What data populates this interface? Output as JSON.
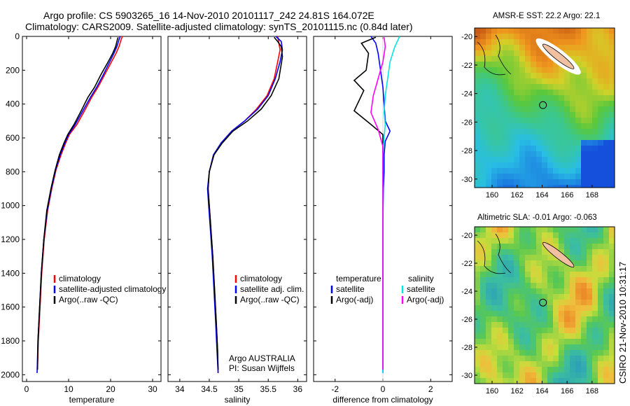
{
  "header": {
    "line1": "Argo profile: CS 5903265_16 14-Nov-2010 20101117_242 24.81S 164.072E",
    "line2": "Climatology: CARS2009. Satellite-adjusted climatology: synTS_20101115.nc (0.84d later)"
  },
  "side_label": "CSIRO 21-Nov-2010 10:31:17",
  "colors": {
    "climatology": "#ff0000",
    "satellite": "#0000ff",
    "argo": "#000000",
    "salinity_satellite": "#00e5e5",
    "salinity_argo": "#ff00ff"
  },
  "chart_data": [
    {
      "type": "line",
      "name": "temperature-profile",
      "xlabel": "temperature",
      "xlim": [
        -1,
        32
      ],
      "ylim": [
        2040,
        0
      ],
      "xticks": [
        0,
        10,
        20,
        30
      ],
      "yticks": [
        0,
        200,
        400,
        600,
        800,
        1000,
        1200,
        1400,
        1600,
        1800,
        2000
      ],
      "legend": [
        "climatology",
        "satellite-adjusted climatology",
        "Argo(..raw -QC)"
      ],
      "series": [
        {
          "name": "climatology",
          "color": "#ff0000",
          "points": [
            [
              22.8,
              0
            ],
            [
              22.5,
              20
            ],
            [
              22.0,
              60
            ],
            [
              21.3,
              100
            ],
            [
              20.0,
              160
            ],
            [
              18.5,
              230
            ],
            [
              17.0,
              300
            ],
            [
              15.5,
              360
            ],
            [
              13.8,
              440
            ],
            [
              12.0,
              520
            ],
            [
              10.2,
              580
            ],
            [
              9.3,
              630
            ],
            [
              8.2,
              700
            ],
            [
              7.0,
              790
            ],
            [
              6.0,
              900
            ],
            [
              5.0,
              1030
            ],
            [
              4.2,
              1200
            ],
            [
              3.6,
              1400
            ],
            [
              3.2,
              1600
            ],
            [
              2.8,
              1800
            ],
            [
              2.6,
              1960
            ]
          ]
        },
        {
          "name": "satellite-adjusted climatology",
          "color": "#0000ff",
          "points": [
            [
              22.3,
              0
            ],
            [
              22.0,
              20
            ],
            [
              21.5,
              60
            ],
            [
              20.8,
              100
            ],
            [
              19.6,
              160
            ],
            [
              18.2,
              230
            ],
            [
              16.7,
              300
            ],
            [
              15.2,
              360
            ],
            [
              13.4,
              440
            ],
            [
              11.6,
              520
            ],
            [
              10.0,
              580
            ],
            [
              9.1,
              630
            ],
            [
              8.0,
              700
            ],
            [
              6.9,
              790
            ],
            [
              5.9,
              900
            ],
            [
              4.9,
              1030
            ],
            [
              4.1,
              1200
            ],
            [
              3.5,
              1400
            ],
            [
              3.1,
              1600
            ],
            [
              2.7,
              1800
            ],
            [
              2.5,
              1990
            ]
          ]
        },
        {
          "name": "Argo(..raw -QC)",
          "color": "#000000",
          "points": [
            [
              21.8,
              5
            ],
            [
              21.6,
              20
            ],
            [
              21.2,
              60
            ],
            [
              20.5,
              100
            ],
            [
              19.2,
              160
            ],
            [
              17.6,
              230
            ],
            [
              16.2,
              300
            ],
            [
              14.6,
              360
            ],
            [
              13.0,
              440
            ],
            [
              11.3,
              520
            ],
            [
              9.8,
              580
            ],
            [
              8.9,
              630
            ],
            [
              7.8,
              700
            ],
            [
              6.8,
              790
            ],
            [
              5.8,
              900
            ],
            [
              4.8,
              1030
            ],
            [
              4.1,
              1200
            ],
            [
              3.5,
              1400
            ],
            [
              3.1,
              1600
            ],
            [
              2.7,
              1800
            ],
            [
              2.6,
              1970
            ]
          ]
        }
      ]
    },
    {
      "type": "line",
      "name": "salinity-profile",
      "xlabel": "salinity",
      "xlim": [
        33.8,
        36.15
      ],
      "ylim": [
        2040,
        0
      ],
      "xticks": [
        34,
        34.5,
        35,
        35.5,
        36
      ],
      "legend": [
        "climatology",
        "satellite adj. clim.",
        "Argo(..raw -QC)"
      ],
      "annotation": [
        "Argo AUSTRALIA",
        "PI: Susan Wijffels"
      ],
      "series": [
        {
          "name": "climatology",
          "color": "#ff0000",
          "points": [
            [
              35.66,
              0
            ],
            [
              35.68,
              40
            ],
            [
              35.7,
              80
            ],
            [
              35.66,
              150
            ],
            [
              35.6,
              250
            ],
            [
              35.48,
              350
            ],
            [
              35.3,
              430
            ],
            [
              35.1,
              500
            ],
            [
              34.88,
              560
            ],
            [
              34.7,
              630
            ],
            [
              34.58,
              700
            ],
            [
              34.5,
              800
            ],
            [
              34.48,
              900
            ],
            [
              34.5,
              1000
            ],
            [
              34.53,
              1150
            ],
            [
              34.56,
              1300
            ],
            [
              34.59,
              1500
            ],
            [
              34.62,
              1700
            ],
            [
              34.64,
              1850
            ],
            [
              34.65,
              1990
            ]
          ]
        },
        {
          "name": "satellite adj. clim.",
          "color": "#0000ff",
          "points": [
            [
              35.63,
              0
            ],
            [
              35.72,
              30
            ],
            [
              35.74,
              80
            ],
            [
              35.7,
              150
            ],
            [
              35.62,
              250
            ],
            [
              35.5,
              350
            ],
            [
              35.32,
              430
            ],
            [
              35.1,
              500
            ],
            [
              34.88,
              560
            ],
            [
              34.7,
              630
            ],
            [
              34.57,
              700
            ],
            [
              34.5,
              800
            ],
            [
              34.47,
              900
            ],
            [
              34.49,
              1000
            ],
            [
              34.52,
              1150
            ],
            [
              34.55,
              1300
            ],
            [
              34.58,
              1500
            ],
            [
              34.61,
              1700
            ],
            [
              34.63,
              1850
            ],
            [
              34.65,
              1990
            ]
          ]
        },
        {
          "name": "Argo(..raw -QC)",
          "color": "#000000",
          "points": [
            [
              35.6,
              5
            ],
            [
              35.66,
              30
            ],
            [
              35.72,
              60
            ],
            [
              35.74,
              120
            ],
            [
              35.68,
              250
            ],
            [
              35.55,
              350
            ],
            [
              35.38,
              430
            ],
            [
              35.15,
              500
            ],
            [
              34.9,
              560
            ],
            [
              34.72,
              630
            ],
            [
              34.58,
              700
            ],
            [
              34.5,
              800
            ],
            [
              34.48,
              900
            ],
            [
              34.5,
              1000
            ],
            [
              34.53,
              1150
            ],
            [
              34.56,
              1300
            ],
            [
              34.59,
              1500
            ],
            [
              34.62,
              1700
            ],
            [
              34.64,
              1850
            ],
            [
              34.65,
              1970
            ]
          ]
        }
      ]
    },
    {
      "type": "line",
      "name": "difference-profile",
      "xlabel": "difference from climatology",
      "xlim": [
        -2.9,
        2.9
      ],
      "ylim": [
        2040,
        0
      ],
      "xticks": [
        -2,
        0,
        2
      ],
      "legend_left_title": "temperature",
      "legend_right_title": "salinity",
      "legend_left": [
        "satellite",
        "Argo(-adj)"
      ],
      "legend_right": [
        "satellite",
        "Argo(-adj)"
      ],
      "series": [
        {
          "name": "temperature satellite",
          "color": "#0000ff",
          "points": [
            [
              -0.5,
              0
            ],
            [
              -0.3,
              40
            ],
            [
              -0.2,
              100
            ],
            [
              -0.1,
              200
            ],
            [
              0.0,
              300
            ],
            [
              0.05,
              400
            ],
            [
              0.1,
              500
            ],
            [
              0.3,
              560
            ],
            [
              0.1,
              620
            ],
            [
              0.05,
              700
            ],
            [
              0.05,
              800
            ],
            [
              0.02,
              900
            ],
            [
              0.0,
              1100
            ],
            [
              0.0,
              1400
            ],
            [
              0.0,
              1700
            ],
            [
              0.0,
              1990
            ]
          ]
        },
        {
          "name": "temperature Argo(-adj)",
          "color": "#000000",
          "points": [
            [
              -0.3,
              5
            ],
            [
              -0.9,
              40
            ],
            [
              -0.6,
              100
            ],
            [
              -0.7,
              200
            ],
            [
              -1.2,
              260
            ],
            [
              -0.8,
              320
            ],
            [
              -1.0,
              380
            ],
            [
              -1.2,
              440
            ],
            [
              -0.5,
              520
            ],
            [
              0.0,
              580
            ],
            [
              0.0,
              650
            ],
            [
              0.0,
              750
            ],
            [
              0.0,
              900
            ],
            [
              0.0,
              1200
            ],
            [
              0.0,
              1500
            ],
            [
              0.0,
              1800
            ],
            [
              0.0,
              1970
            ]
          ]
        },
        {
          "name": "salinity satellite",
          "color": "#00e5e5",
          "points": [
            [
              0.7,
              0
            ],
            [
              0.5,
              60
            ],
            [
              0.3,
              150
            ],
            [
              0.2,
              250
            ],
            [
              0.1,
              350
            ],
            [
              0.05,
              450
            ],
            [
              0.1,
              520
            ],
            [
              0.05,
              600
            ],
            [
              0.0,
              700
            ],
            [
              0.0,
              900
            ],
            [
              0.0,
              1200
            ],
            [
              0.0,
              1500
            ],
            [
              0.0,
              1800
            ],
            [
              0.0,
              1990
            ]
          ]
        },
        {
          "name": "salinity Argo(-adj)",
          "color": "#ff00ff",
          "points": [
            [
              0.05,
              5
            ],
            [
              0.1,
              60
            ],
            [
              0.0,
              150
            ],
            [
              -0.2,
              250
            ],
            [
              -0.4,
              350
            ],
            [
              -0.5,
              450
            ],
            [
              -0.2,
              550
            ],
            [
              0.0,
              650
            ],
            [
              0.0,
              800
            ],
            [
              0.0,
              1000
            ],
            [
              0.0,
              1300
            ],
            [
              0.0,
              1600
            ],
            [
              0.0,
              1970
            ]
          ]
        }
      ]
    },
    {
      "type": "heatmap",
      "name": "sst-map",
      "title": "AMSR-E SST: 22.2 Argo: 22.1",
      "xticks": [
        160,
        162,
        164,
        166,
        168
      ],
      "yticks": [
        -20,
        -22,
        -24,
        -26,
        -28,
        -30
      ],
      "xlim": [
        158.6,
        169.8
      ],
      "ylim": [
        -30.6,
        -19.4
      ],
      "argo_position": [
        164.07,
        -24.81
      ]
    },
    {
      "type": "heatmap",
      "name": "sla-map",
      "title": "Altimetric SLA: -0.01 Argo: -0.063",
      "xticks": [
        160,
        162,
        164,
        166,
        168
      ],
      "yticks": [
        -20,
        -22,
        -24,
        -26,
        -28,
        -30
      ],
      "xlim": [
        158.6,
        169.8
      ],
      "ylim": [
        -30.6,
        -19.4
      ],
      "argo_position": [
        164.07,
        -24.81
      ]
    }
  ]
}
